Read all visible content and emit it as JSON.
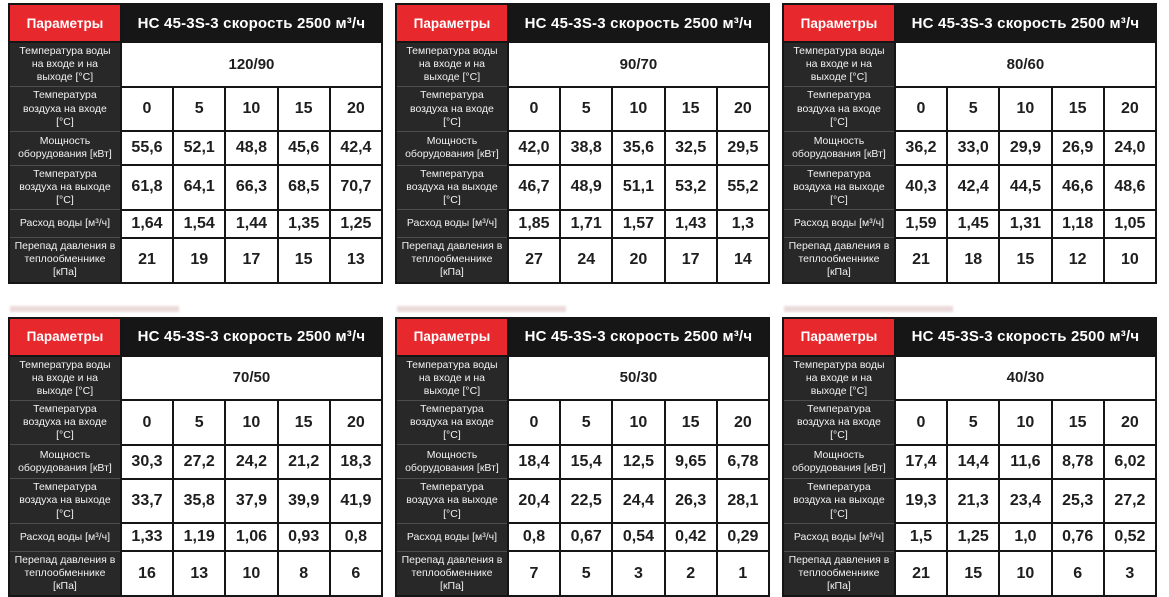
{
  "shared": {
    "params_label": "Параметры",
    "title": "НС 45-3S-3 скорость 2500 м³/ч",
    "labels": {
      "water_temp": "Температура воды на входе и на выходе [°С]",
      "air_in": "Температура воздуха на входе [°С]",
      "power": "Мощность оборудования [кВт]",
      "air_out": "Температура воздуха на выходе [°С]",
      "water_flow": "Расход воды [м³/ч]",
      "pressure_drop": "Перепад давления в теплообменнике [кПа]"
    },
    "air_inlet_temps": [
      "0",
      "5",
      "10",
      "15",
      "20"
    ]
  },
  "colors": {
    "accent_red": "#e7282d",
    "header_black": "#161616",
    "label_dark": "#282828"
  },
  "tables": [
    {
      "water_temp": "120/90",
      "power": [
        "55,6",
        "52,1",
        "48,8",
        "45,6",
        "42,4"
      ],
      "air_out": [
        "61,8",
        "64,1",
        "66,3",
        "68,5",
        "70,7"
      ],
      "water_flow": [
        "1,64",
        "1,54",
        "1,44",
        "1,35",
        "1,25"
      ],
      "pressure_drop": [
        "21",
        "19",
        "17",
        "15",
        "13"
      ]
    },
    {
      "water_temp": "90/70",
      "power": [
        "42,0",
        "38,8",
        "35,6",
        "32,5",
        "29,5"
      ],
      "air_out": [
        "46,7",
        "48,9",
        "51,1",
        "53,2",
        "55,2"
      ],
      "water_flow": [
        "1,85",
        "1,71",
        "1,57",
        "1,43",
        "1,3"
      ],
      "pressure_drop": [
        "27",
        "24",
        "20",
        "17",
        "14"
      ]
    },
    {
      "water_temp": "80/60",
      "power": [
        "36,2",
        "33,0",
        "29,9",
        "26,9",
        "24,0"
      ],
      "air_out": [
        "40,3",
        "42,4",
        "44,5",
        "46,6",
        "48,6"
      ],
      "water_flow": [
        "1,59",
        "1,45",
        "1,31",
        "1,18",
        "1,05"
      ],
      "pressure_drop": [
        "21",
        "18",
        "15",
        "12",
        "10"
      ]
    },
    {
      "water_temp": "70/50",
      "power": [
        "30,3",
        "27,2",
        "24,2",
        "21,2",
        "18,3"
      ],
      "air_out": [
        "33,7",
        "35,8",
        "37,9",
        "39,9",
        "41,9"
      ],
      "water_flow": [
        "1,33",
        "1,19",
        "1,06",
        "0,93",
        "0,8"
      ],
      "pressure_drop": [
        "16",
        "13",
        "10",
        "8",
        "6"
      ]
    },
    {
      "water_temp": "50/30",
      "power": [
        "18,4",
        "15,4",
        "12,5",
        "9,65",
        "6,78"
      ],
      "air_out": [
        "20,4",
        "22,5",
        "24,4",
        "26,3",
        "28,1"
      ],
      "water_flow": [
        "0,8",
        "0,67",
        "0,54",
        "0,42",
        "0,29"
      ],
      "pressure_drop": [
        "7",
        "5",
        "3",
        "2",
        "1"
      ]
    },
    {
      "water_temp": "40/30",
      "power": [
        "17,4",
        "14,4",
        "11,6",
        "8,78",
        "6,02"
      ],
      "air_out": [
        "19,3",
        "21,3",
        "23,4",
        "25,3",
        "27,2"
      ],
      "water_flow": [
        "1,5",
        "1,25",
        "1,0",
        "0,76",
        "0,52"
      ],
      "pressure_drop": [
        "21",
        "15",
        "10",
        "6",
        "3"
      ]
    }
  ]
}
